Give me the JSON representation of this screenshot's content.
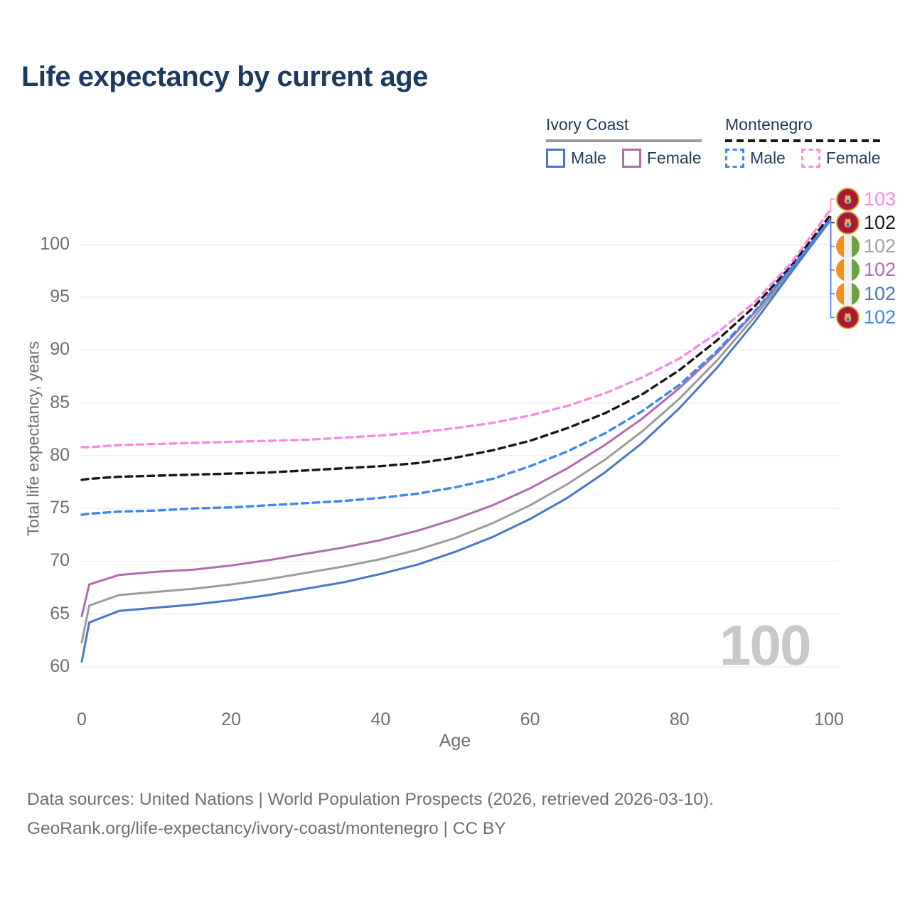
{
  "title": "Life expectancy by current age",
  "legend": {
    "groups": [
      {
        "label": "Ivory Coast",
        "line_style": "solid",
        "line_color": "#9b9b9b",
        "items": [
          {
            "label": "Male",
            "color": "#4a76c9",
            "dashed": false
          },
          {
            "label": "Female",
            "color": "#b06cb0",
            "dashed": false
          }
        ]
      },
      {
        "label": "Montenegro",
        "line_style": "dashed",
        "line_color": "#161616",
        "items": [
          {
            "label": "Male",
            "color": "#3d87ee",
            "dashed": true
          },
          {
            "label": "Female",
            "color": "#fc8ae1",
            "dashed": true
          }
        ]
      }
    ]
  },
  "chart_data": {
    "type": "line",
    "title": "Life expectancy by current age",
    "xlabel": "Age",
    "ylabel": "Total life expectancy, years",
    "xlim": [
      0,
      100
    ],
    "ylim": [
      60,
      107
    ],
    "xticks": [
      0,
      20,
      40,
      60,
      80,
      100
    ],
    "yticks": [
      60,
      65,
      70,
      75,
      80,
      85,
      90,
      95,
      100
    ],
    "grid": "horizontal-only",
    "legend_position": "top-right",
    "age_counter": "100",
    "x": [
      0,
      1,
      5,
      10,
      15,
      20,
      25,
      30,
      35,
      40,
      45,
      50,
      55,
      60,
      65,
      70,
      75,
      80,
      85,
      90,
      95,
      100
    ],
    "series": [
      {
        "id": "ic_total",
        "name": "Ivory Coast Total",
        "color": "#9b9b9b",
        "dash": "solid",
        "values": [
          62.3,
          65.8,
          66.8,
          67.1,
          67.4,
          67.8,
          68.3,
          68.9,
          69.5,
          70.2,
          71.1,
          72.2,
          73.6,
          75.3,
          77.3,
          79.6,
          82.3,
          85.4,
          89.0,
          93.1,
          97.6,
          102.2
        ],
        "end_label": "102"
      },
      {
        "id": "ic_female",
        "name": "Ivory Coast Female",
        "color": "#b06cb0",
        "dash": "solid",
        "values": [
          64.8,
          67.8,
          68.7,
          69.0,
          69.2,
          69.6,
          70.1,
          70.7,
          71.3,
          72.0,
          72.9,
          74.0,
          75.3,
          76.9,
          78.8,
          81.0,
          83.5,
          86.4,
          89.7,
          93.5,
          97.8,
          102.3
        ],
        "end_label": "102"
      },
      {
        "id": "ic_male",
        "name": "Ivory Coast Male",
        "color": "#4a76c9",
        "dash": "solid",
        "values": [
          60.5,
          64.2,
          65.3,
          65.6,
          65.9,
          66.3,
          66.8,
          67.4,
          68.0,
          68.8,
          69.7,
          70.9,
          72.3,
          74.0,
          76.0,
          78.4,
          81.2,
          84.5,
          88.3,
          92.6,
          97.4,
          102.1
        ],
        "end_label": "102"
      },
      {
        "id": "mne_total",
        "name": "Montenegro Total",
        "color": "#161616",
        "dash": "dashed",
        "values": [
          77.7,
          77.8,
          78.0,
          78.1,
          78.2,
          78.3,
          78.4,
          78.6,
          78.8,
          79.0,
          79.3,
          79.8,
          80.5,
          81.4,
          82.6,
          84.0,
          85.8,
          88.1,
          90.9,
          94.1,
          98.0,
          102.6
        ],
        "end_label": "102"
      },
      {
        "id": "mne_male",
        "name": "Montenegro Male",
        "color": "#3d87ee",
        "dash": "dashed",
        "values": [
          74.4,
          74.5,
          74.7,
          74.8,
          75.0,
          75.1,
          75.3,
          75.5,
          75.7,
          76.0,
          76.4,
          77.0,
          77.8,
          79.0,
          80.4,
          82.1,
          84.2,
          86.7,
          89.9,
          93.6,
          97.8,
          102.2
        ],
        "end_label": "102"
      },
      {
        "id": "mne_female",
        "name": "Montenegro Female",
        "color": "#fc8ae1",
        "dash": "dashed",
        "values": [
          80.8,
          80.8,
          81.0,
          81.1,
          81.2,
          81.3,
          81.4,
          81.5,
          81.7,
          81.9,
          82.2,
          82.6,
          83.1,
          83.8,
          84.7,
          85.9,
          87.4,
          89.2,
          91.6,
          94.5,
          98.3,
          103.1
        ],
        "end_label": "103"
      }
    ]
  },
  "end_labels": [
    {
      "series": "mne_female",
      "flag": "me",
      "value": "103",
      "color": "#fc8ae1"
    },
    {
      "series": "mne_total",
      "flag": "me",
      "value": "102",
      "color": "#1a1a1a"
    },
    {
      "series": "ic_total",
      "flag": "ci",
      "value": "102",
      "color": "#9e9e9e"
    },
    {
      "series": "ic_female",
      "flag": "ci",
      "value": "102",
      "color": "#b06cb0"
    },
    {
      "series": "ic_male",
      "flag": "ci",
      "value": "102",
      "color": "#4a76c9"
    },
    {
      "series": "mne_male",
      "flag": "me",
      "value": "102",
      "color": "#3d87ee"
    }
  ],
  "footer": {
    "line1": "Data sources: United Nations | World Population Prospects (2026, retrieved 2026-03-10).",
    "line2": "GeoRank.org/life-expectancy/ivory-coast/montenegro | CC BY"
  }
}
